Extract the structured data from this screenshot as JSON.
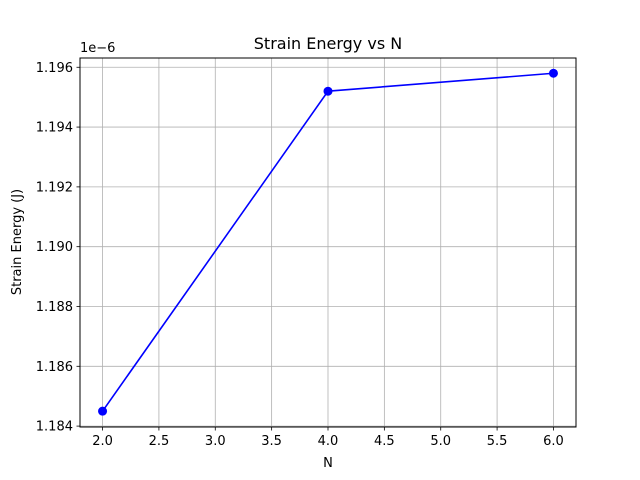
{
  "chart_data": {
    "type": "line",
    "title": "Strain Energy vs N",
    "xlabel": "N",
    "ylabel": "Strain Energy (J)",
    "y_offset_label": "1e−6",
    "x": [
      2,
      4,
      6
    ],
    "series": [
      {
        "values": [
          1.1845,
          1.1952,
          1.1958
        ],
        "color": "#0000ff",
        "marker": "circle"
      }
    ],
    "xlim": [
      1.8,
      6.2
    ],
    "ylim": [
      1.18397,
      1.19631
    ],
    "xticks": [
      2.0,
      2.5,
      3.0,
      3.5,
      4.0,
      4.5,
      5.0,
      5.5,
      6.0
    ],
    "xtick_labels": [
      "2.0",
      "2.5",
      "3.0",
      "3.5",
      "4.0",
      "4.5",
      "5.0",
      "5.5",
      "6.0"
    ],
    "yticks": [
      1.184,
      1.186,
      1.188,
      1.19,
      1.192,
      1.194,
      1.196
    ],
    "ytick_labels": [
      "1.184",
      "1.186",
      "1.188",
      "1.190",
      "1.192",
      "1.194",
      "1.196"
    ],
    "grid": true,
    "legend": false
  }
}
